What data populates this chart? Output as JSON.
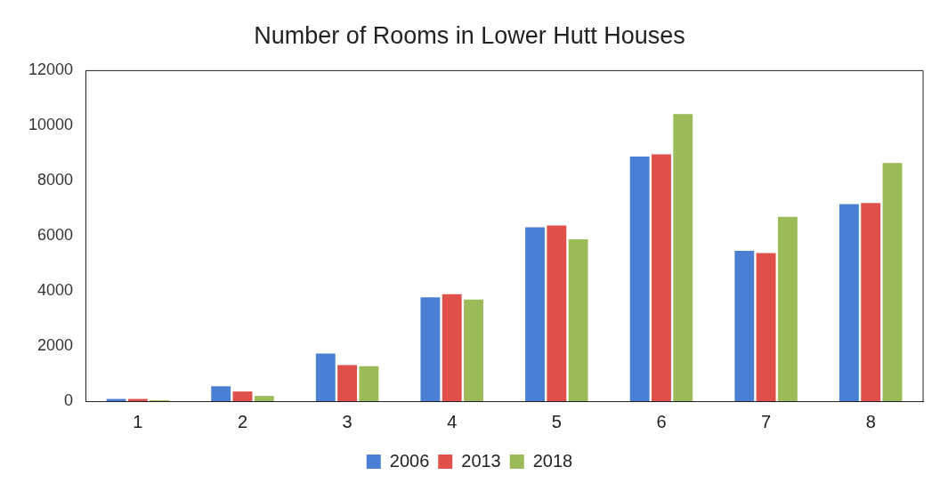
{
  "chart_data": {
    "type": "bar",
    "title": "Number of Rooms in Lower Hutt Houses",
    "categories": [
      "1",
      "2",
      "3",
      "4",
      "5",
      "6",
      "7",
      "8"
    ],
    "series": [
      {
        "name": "2006",
        "color": "#4a7fd4",
        "values": [
          80,
          540,
          1730,
          3770,
          6310,
          8880,
          5460,
          7150
        ]
      },
      {
        "name": "2013",
        "color": "#e0504a",
        "values": [
          80,
          350,
          1310,
          3880,
          6380,
          8960,
          5380,
          7190
        ]
      },
      {
        "name": "2018",
        "color": "#9bbb59",
        "values": [
          30,
          190,
          1270,
          3690,
          5880,
          10420,
          6690,
          8650
        ]
      }
    ],
    "ylim": [
      0,
      12000
    ],
    "yticks": [
      0,
      2000,
      4000,
      6000,
      8000,
      10000,
      12000
    ],
    "grid": false,
    "legend": "bottom"
  }
}
